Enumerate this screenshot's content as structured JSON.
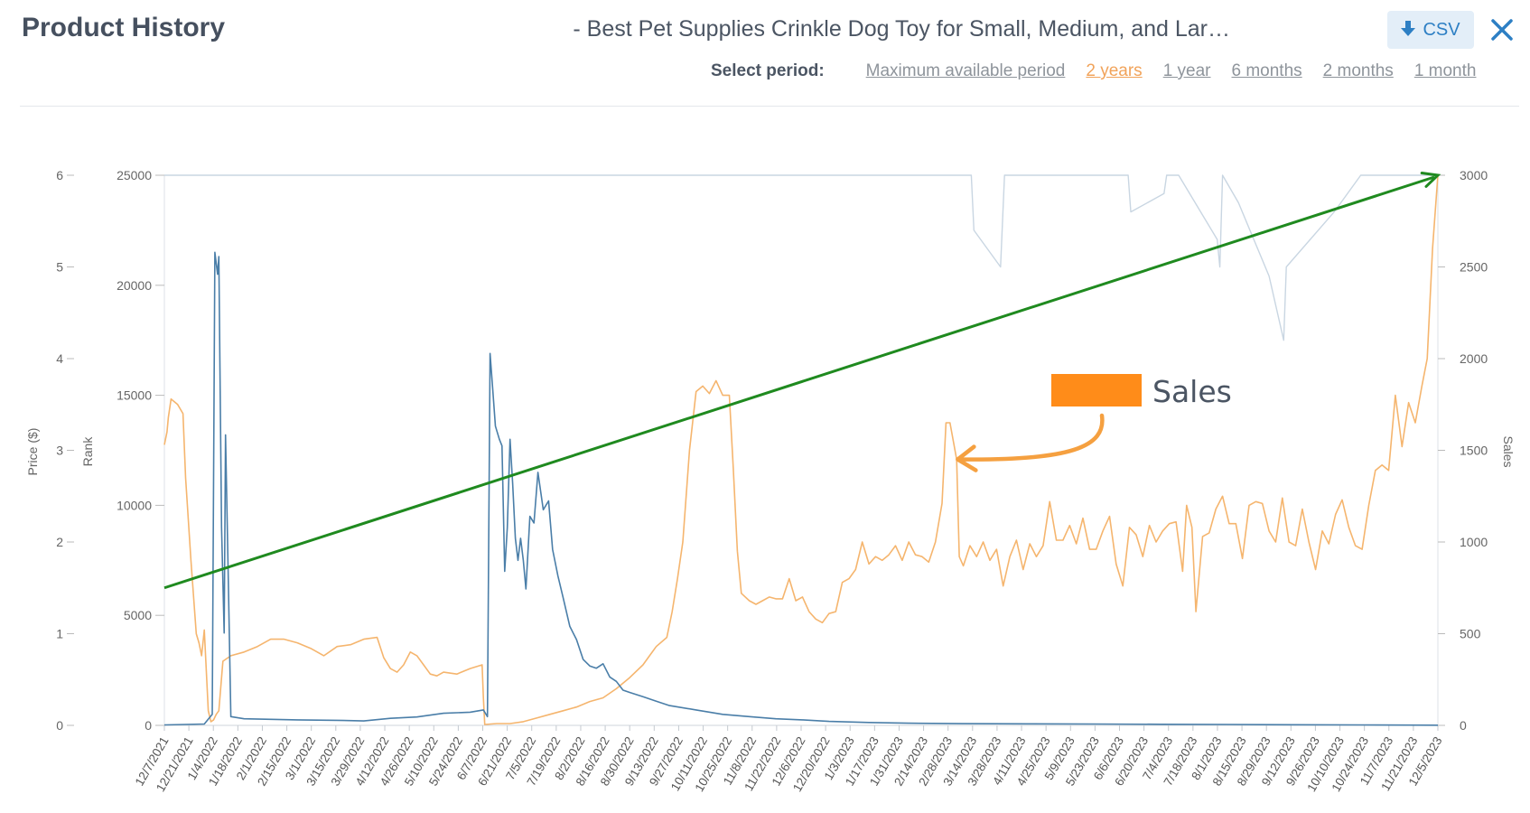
{
  "header": {
    "title": "Product History",
    "product_name": "- Best Pet Supplies Crinkle Dog Toy for Small, Medium, and Lar…",
    "csv_label": "CSV",
    "csv_icon": "download-icon",
    "close_icon": "close-icon"
  },
  "period": {
    "label": "Select period:",
    "options": [
      "Maximum available period",
      "2 years",
      "1 year",
      "6 months",
      "2 months",
      "1 month"
    ],
    "selected": "2 years"
  },
  "colors": {
    "sales": "#f5b56e",
    "rank": "#4a7ea8",
    "price": "#c9d6e2",
    "trend": "#1f8a1f",
    "legend": "#ff8c19",
    "annotation_arrow": "#f5a040"
  },
  "chart_data": {
    "type": "line",
    "title": "Product History",
    "x_start": "12/7/2021",
    "x_end": "12/5/2023",
    "x_tick_labels": [
      "12/7/2021",
      "12/21/2021",
      "1/4/2022",
      "1/18/2022",
      "2/1/2022",
      "2/15/2022",
      "3/1/2022",
      "3/15/2022",
      "3/29/2022",
      "4/12/2022",
      "4/26/2022",
      "5/10/2022",
      "5/24/2022",
      "6/7/2022",
      "6/21/2022",
      "7/5/2022",
      "7/19/2022",
      "8/2/2022",
      "8/16/2022",
      "8/30/2022",
      "9/13/2022",
      "9/27/2022",
      "10/11/2022",
      "10/25/2022",
      "11/8/2022",
      "11/22/2022",
      "12/6/2022",
      "12/20/2022",
      "1/3/2023",
      "1/17/2023",
      "1/31/2023",
      "2/14/2023",
      "2/28/2023",
      "3/14/2023",
      "3/28/2023",
      "4/11/2023",
      "4/25/2023",
      "5/9/2023",
      "5/23/2023",
      "6/6/2023",
      "6/20/2023",
      "7/4/2023",
      "7/18/2023",
      "8/1/2023",
      "8/15/2023",
      "8/29/2023",
      "9/12/2023",
      "9/26/2023",
      "10/10/2023",
      "10/24/2023",
      "11/7/2023",
      "11/21/2023",
      "12/5/2023"
    ],
    "axes": {
      "price": {
        "label": "Price ($)",
        "range": [
          0,
          6
        ],
        "ticks": [
          "0",
          "1",
          "2",
          "3",
          "4",
          "5",
          "6"
        ]
      },
      "rank": {
        "label": "Rank",
        "range": [
          0,
          25000
        ],
        "ticks": [
          "0",
          "5000",
          "10000",
          "15000",
          "20000",
          "25000"
        ]
      },
      "sales": {
        "label": "Sales",
        "range": [
          0,
          3000
        ],
        "ticks": [
          "0",
          "500",
          "1000",
          "1500",
          "2000",
          "2500",
          "3000"
        ]
      }
    },
    "legend": {
      "label": "Sales",
      "position": "center-right"
    },
    "series": [
      {
        "name": "Sales",
        "axis": "sales",
        "points": [
          [
            0,
            1530
          ],
          [
            2,
            1600
          ],
          [
            3,
            1680
          ],
          [
            5,
            1780
          ],
          [
            10,
            1750
          ],
          [
            14,
            1700
          ],
          [
            16,
            1350
          ],
          [
            20,
            900
          ],
          [
            24,
            500
          ],
          [
            26,
            450
          ],
          [
            28,
            380
          ],
          [
            30,
            520
          ],
          [
            31,
            380
          ],
          [
            33,
            80
          ],
          [
            35,
            20
          ],
          [
            37,
            30
          ],
          [
            39,
            60
          ],
          [
            41,
            80
          ],
          [
            44,
            350
          ],
          [
            50,
            380
          ],
          [
            60,
            400
          ],
          [
            70,
            430
          ],
          [
            80,
            470
          ],
          [
            90,
            470
          ],
          [
            100,
            450
          ],
          [
            110,
            420
          ],
          [
            120,
            380
          ],
          [
            130,
            430
          ],
          [
            140,
            440
          ],
          [
            150,
            470
          ],
          [
            160,
            480
          ],
          [
            165,
            370
          ],
          [
            170,
            310
          ],
          [
            175,
            290
          ],
          [
            180,
            330
          ],
          [
            185,
            400
          ],
          [
            190,
            380
          ],
          [
            195,
            330
          ],
          [
            200,
            280
          ],
          [
            205,
            270
          ],
          [
            210,
            290
          ],
          [
            220,
            280
          ],
          [
            230,
            310
          ],
          [
            239,
            330
          ],
          [
            240,
            150
          ],
          [
            241,
            5
          ],
          [
            250,
            10
          ],
          [
            260,
            10
          ],
          [
            270,
            20
          ],
          [
            280,
            40
          ],
          [
            290,
            60
          ],
          [
            300,
            80
          ],
          [
            310,
            100
          ],
          [
            320,
            130
          ],
          [
            330,
            150
          ],
          [
            340,
            200
          ],
          [
            350,
            260
          ],
          [
            360,
            330
          ],
          [
            365,
            380
          ],
          [
            370,
            430
          ],
          [
            378,
            480
          ],
          [
            382,
            620
          ],
          [
            386,
            800
          ],
          [
            390,
            1000
          ],
          [
            395,
            1500
          ],
          [
            400,
            1820
          ],
          [
            405,
            1850
          ],
          [
            410,
            1810
          ],
          [
            415,
            1880
          ],
          [
            420,
            1800
          ],
          [
            425,
            1800
          ],
          [
            428,
            1400
          ],
          [
            431,
            950
          ],
          [
            434,
            720
          ],
          [
            440,
            680
          ],
          [
            445,
            660
          ],
          [
            450,
            680
          ],
          [
            455,
            700
          ],
          [
            460,
            690
          ],
          [
            465,
            690
          ],
          [
            470,
            800
          ],
          [
            475,
            680
          ],
          [
            480,
            700
          ],
          [
            485,
            620
          ],
          [
            490,
            580
          ],
          [
            495,
            560
          ],
          [
            500,
            610
          ],
          [
            505,
            620
          ],
          [
            510,
            780
          ],
          [
            515,
            800
          ],
          [
            520,
            850
          ],
          [
            525,
            1000
          ],
          [
            530,
            880
          ],
          [
            535,
            920
          ],
          [
            540,
            900
          ],
          [
            545,
            930
          ],
          [
            550,
            980
          ],
          [
            555,
            900
          ],
          [
            560,
            1000
          ],
          [
            565,
            930
          ],
          [
            570,
            920
          ],
          [
            575,
            890
          ],
          [
            580,
            1000
          ],
          [
            585,
            1210
          ],
          [
            588,
            1650
          ],
          [
            591,
            1650
          ],
          [
            596,
            1450
          ],
          [
            598,
            920
          ],
          [
            601,
            870
          ],
          [
            606,
            980
          ],
          [
            611,
            920
          ],
          [
            616,
            1000
          ],
          [
            621,
            900
          ],
          [
            626,
            960
          ],
          [
            631,
            760
          ],
          [
            636,
            920
          ],
          [
            641,
            1010
          ],
          [
            646,
            850
          ],
          [
            651,
            990
          ],
          [
            656,
            920
          ],
          [
            661,
            980
          ],
          [
            666,
            1220
          ],
          [
            671,
            1010
          ],
          [
            676,
            1010
          ],
          [
            681,
            1090
          ],
          [
            686,
            990
          ],
          [
            691,
            1130
          ],
          [
            696,
            960
          ],
          [
            701,
            960
          ],
          [
            706,
            1060
          ],
          [
            711,
            1140
          ],
          [
            716,
            880
          ],
          [
            721,
            760
          ],
          [
            726,
            1080
          ],
          [
            731,
            1040
          ],
          [
            736,
            920
          ],
          [
            741,
            1090
          ],
          [
            746,
            1000
          ],
          [
            751,
            1060
          ],
          [
            756,
            1100
          ],
          [
            761,
            1110
          ],
          [
            766,
            840
          ],
          [
            769,
            1200
          ],
          [
            773,
            1080
          ],
          [
            776,
            620
          ],
          [
            781,
            1030
          ],
          [
            786,
            1050
          ],
          [
            791,
            1180
          ],
          [
            796,
            1250
          ],
          [
            801,
            1100
          ],
          [
            806,
            1100
          ],
          [
            811,
            910
          ],
          [
            816,
            1200
          ],
          [
            821,
            1220
          ],
          [
            826,
            1210
          ],
          [
            831,
            1060
          ],
          [
            836,
            1000
          ],
          [
            841,
            1240
          ],
          [
            846,
            1000
          ],
          [
            851,
            980
          ],
          [
            856,
            1180
          ],
          [
            861,
            1000
          ],
          [
            866,
            850
          ],
          [
            871,
            1060
          ],
          [
            876,
            990
          ],
          [
            881,
            1150
          ],
          [
            886,
            1230
          ],
          [
            891,
            1080
          ],
          [
            896,
            980
          ],
          [
            901,
            960
          ],
          [
            906,
            1200
          ],
          [
            911,
            1390
          ],
          [
            916,
            1420
          ],
          [
            921,
            1390
          ],
          [
            926,
            1800
          ],
          [
            931,
            1520
          ],
          [
            936,
            1760
          ],
          [
            941,
            1650
          ],
          [
            946,
            1850
          ],
          [
            950,
            2000
          ],
          [
            954,
            2600
          ],
          [
            958,
            3000
          ]
        ]
      },
      {
        "name": "Rank",
        "axis": "rank",
        "points": [
          [
            0,
            20
          ],
          [
            30,
            60
          ],
          [
            36,
            500
          ],
          [
            38,
            21500
          ],
          [
            40,
            20500
          ],
          [
            41,
            21300
          ],
          [
            43,
            9000
          ],
          [
            45,
            4200
          ],
          [
            46,
            13200
          ],
          [
            48,
            7000
          ],
          [
            50,
            400
          ],
          [
            60,
            300
          ],
          [
            100,
            250
          ],
          [
            130,
            230
          ],
          [
            150,
            200
          ],
          [
            170,
            320
          ],
          [
            190,
            380
          ],
          [
            210,
            550
          ],
          [
            230,
            600
          ],
          [
            240,
            700
          ],
          [
            243,
            400
          ],
          [
            245,
            16900
          ],
          [
            247,
            15300
          ],
          [
            249,
            13600
          ],
          [
            252,
            13000
          ],
          [
            254,
            12700
          ],
          [
            256,
            7000
          ],
          [
            258,
            9000
          ],
          [
            260,
            13000
          ],
          [
            262,
            11000
          ],
          [
            264,
            8500
          ],
          [
            266,
            7500
          ],
          [
            268,
            8500
          ],
          [
            270,
            7500
          ],
          [
            272,
            6200
          ],
          [
            275,
            9500
          ],
          [
            278,
            9200
          ],
          [
            281,
            11500
          ],
          [
            285,
            9800
          ],
          [
            289,
            10200
          ],
          [
            292,
            8000
          ],
          [
            296,
            6800
          ],
          [
            300,
            5800
          ],
          [
            305,
            4500
          ],
          [
            310,
            3900
          ],
          [
            315,
            3000
          ],
          [
            320,
            2700
          ],
          [
            325,
            2600
          ],
          [
            330,
            2800
          ],
          [
            335,
            2200
          ],
          [
            340,
            2000
          ],
          [
            345,
            1600
          ],
          [
            350,
            1500
          ],
          [
            355,
            1400
          ],
          [
            360,
            1300
          ],
          [
            370,
            1100
          ],
          [
            380,
            900
          ],
          [
            400,
            700
          ],
          [
            420,
            500
          ],
          [
            440,
            400
          ],
          [
            460,
            300
          ],
          [
            480,
            250
          ],
          [
            500,
            180
          ],
          [
            530,
            130
          ],
          [
            560,
            100
          ],
          [
            600,
            80
          ],
          [
            650,
            70
          ],
          [
            700,
            60
          ],
          [
            750,
            50
          ],
          [
            800,
            40
          ],
          [
            850,
            30
          ],
          [
            900,
            20
          ],
          [
            958,
            10
          ]
        ]
      },
      {
        "name": "Price",
        "axis": "price",
        "points": [
          [
            0,
            6
          ],
          [
            607,
            6
          ],
          [
            609,
            5.4
          ],
          [
            629,
            5.0
          ],
          [
            632,
            6
          ],
          [
            725,
            6
          ],
          [
            727,
            5.6
          ],
          [
            752,
            5.8
          ],
          [
            754,
            6
          ],
          [
            763,
            6
          ],
          [
            792,
            5.3
          ],
          [
            794,
            5.0
          ],
          [
            796,
            6
          ],
          [
            808,
            5.7
          ],
          [
            831,
            4.9
          ],
          [
            842,
            4.2
          ],
          [
            844,
            5.0
          ],
          [
            880,
            5.6
          ],
          [
            900,
            6
          ],
          [
            958,
            6
          ]
        ]
      }
    ],
    "annotations": [
      {
        "type": "trendline",
        "series": "Sales",
        "from": [
          0,
          750
        ],
        "to": [
          958,
          3000
        ]
      },
      {
        "type": "callout-arrow",
        "label": "Sales",
        "points_to": [
          590,
          1480
        ]
      }
    ]
  }
}
